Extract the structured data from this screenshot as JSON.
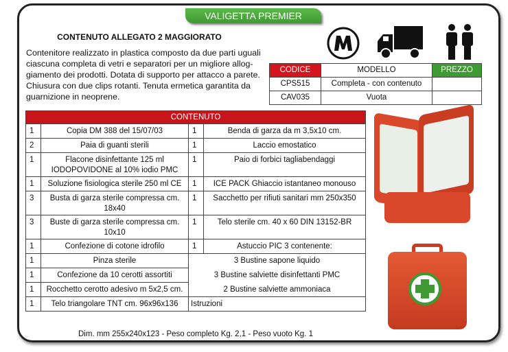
{
  "badge": "VALIGETTA PREMIER",
  "title": "CONTENUTO ALLEGATO 2 MAGGIORATO",
  "description": "Contenitore realizzato in plastica composto da due parti uguali ciascuna completa di vetri e separatori per un migliore allog-giamento dei prodotti. Dotata di supporto per attacco a parete. Chiusura con due clips rotanti. Tenuta ermetica garantita da guarnizione in neoprene.",
  "icons": [
    "m-logo-icon",
    "truck-icon",
    "two-people-icon"
  ],
  "models": {
    "headers": [
      "CODICE",
      "MODELLO",
      "PREZZO"
    ],
    "rows": [
      [
        "CPS515",
        "Completa - con contenuto",
        ""
      ],
      [
        "CAV035",
        "Vuota",
        ""
      ]
    ]
  },
  "contents": {
    "header": "CONTENUTO",
    "rows": [
      [
        "1",
        "Copia DM 388 del 15/07/03",
        "1",
        "Benda di garza da m 3,5x10 cm."
      ],
      [
        "2",
        "Paia di guanti sterili",
        "1",
        "Laccio emostatico"
      ],
      [
        "1",
        "Flacone disinfettante 125 ml IODOPOVIDONE al 10% iodio PMC",
        "1",
        "Paio di forbici tagliabendaggi"
      ],
      [
        "1",
        "Soluzione fisiologica sterile 250 ml CE",
        "1",
        "ICE PACK Ghiaccio istantaneo monouso"
      ],
      [
        "3",
        "Busta di garza sterile compressa cm. 18x40",
        "1",
        "Sacchetto per rifiuti sanitari mm 250x350"
      ],
      [
        "3",
        "Buste di garza sterile compressa cm. 10x10",
        "1",
        "Telo sterile cm. 40 x 60 DIN 13152-BR"
      ],
      [
        "1",
        "Confezione di cotone idrofilo",
        "1",
        "Astuccio PIC 3 contenente:"
      ]
    ],
    "span_rows": [
      [
        "1",
        "Pinza sterile",
        "3 Bustine sapone liquido"
      ],
      [
        "1",
        "Confezione da 10 cerotti assortiti",
        "3 Bustine salviette disinfettanti PMC"
      ],
      [
        "1",
        "Rocchetto cerotto adesivo m 5x2,5 cm.",
        "2 Bustine salviette ammoniaca"
      ],
      [
        "1",
        "Telo triangolare TNT cm. 96x96x136",
        "Istruzioni"
      ]
    ]
  },
  "footer": "Dim.  mm 255x240x123 - Peso completo Kg. 2,1 - Peso vuoto Kg. 1",
  "colors": {
    "red": "#d4151d",
    "green": "#3f9a33",
    "case": "#d9482a"
  }
}
